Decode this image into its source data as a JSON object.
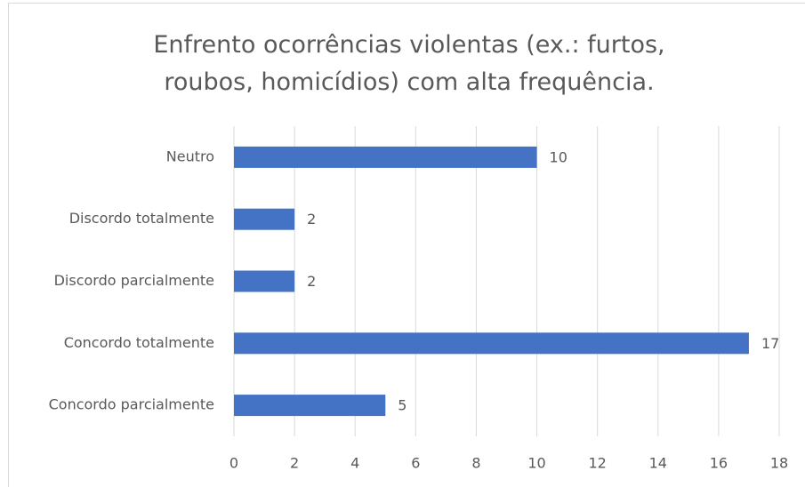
{
  "chart_data": {
    "type": "bar",
    "orientation": "horizontal",
    "title": "Enfrento ocorrências violentas (ex.: furtos, roubos, homicídios) com alta frequência.",
    "categories": [
      "Neutro",
      "Discordo totalmente",
      "Discordo parcialmente",
      "Concordo totalmente",
      "Concordo parcialmente"
    ],
    "values": [
      10,
      2,
      2,
      17,
      5
    ],
    "color": "#4472c4",
    "xlim": [
      0,
      18
    ],
    "xticks": [
      0,
      2,
      4,
      6,
      8,
      10,
      12,
      14,
      16,
      18
    ],
    "grid": true
  }
}
